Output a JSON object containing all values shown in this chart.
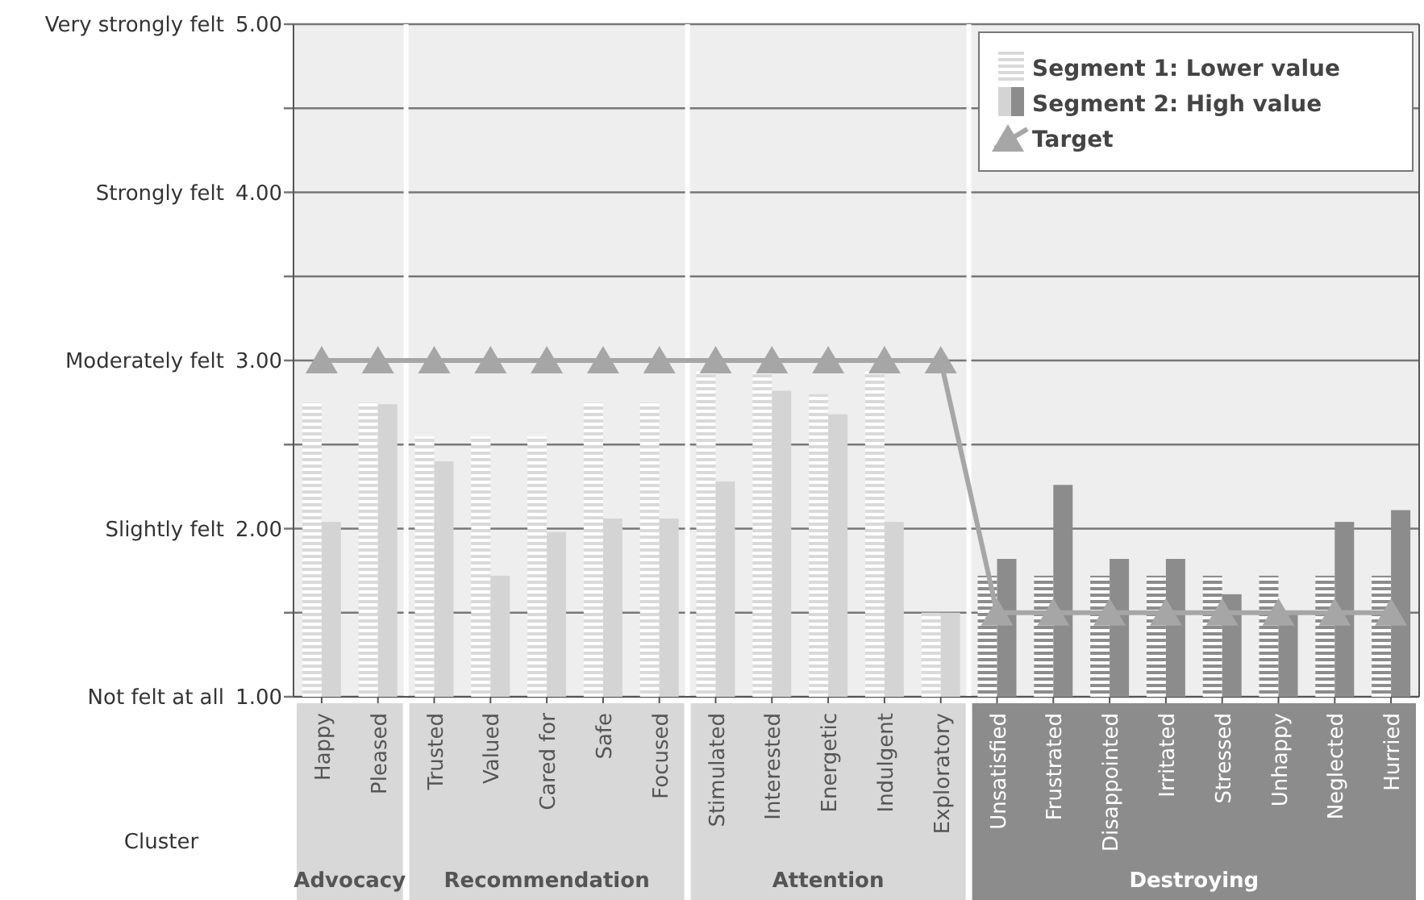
{
  "chart_data": {
    "type": "bar",
    "xlabel": "Cluster",
    "categories": [
      "Happy",
      "Pleased",
      "Trusted",
      "Valued",
      "Cared for",
      "Safe",
      "Focused",
      "Stimulated",
      "Interested",
      "Energetic",
      "Indulgent",
      "Exploratory",
      "Unsatisfied",
      "Frustrated",
      "Disappointed",
      "Irritated",
      "Stressed",
      "Unhappy",
      "Neglected",
      "Hurried"
    ],
    "series": [
      {
        "name": "Segment 1: Lower value",
        "color": "#d9d9d9",
        "colors": [
          "#d9d9d9",
          "#d9d9d9",
          "#d9d9d9",
          "#d9d9d9",
          "#d9d9d9",
          "#d9d9d9",
          "#d9d9d9",
          "#d9d9d9",
          "#d9d9d9",
          "#d9d9d9",
          "#d9d9d9",
          "#d9d9d9",
          "#8c8c8c",
          "#8c8c8c",
          "#8c8c8c",
          "#8c8c8c",
          "#8c8c8c",
          "#8c8c8c",
          "#8c8c8c",
          "#8c8c8c"
        ],
        "values": [
          2.75,
          2.75,
          2.55,
          2.55,
          2.55,
          2.75,
          2.75,
          2.94,
          2.93,
          2.8,
          2.94,
          1.5,
          1.72,
          1.72,
          1.72,
          1.72,
          1.72,
          1.72,
          1.72,
          1.72
        ]
      },
      {
        "name": "Segment 2: High value",
        "color": "#d4d4d4",
        "colors": [
          "#d4d4d4",
          "#d4d4d4",
          "#d4d4d4",
          "#d4d4d4",
          "#d4d4d4",
          "#d4d4d4",
          "#d4d4d4",
          "#d4d4d4",
          "#d4d4d4",
          "#d4d4d4",
          "#d4d4d4",
          "#d4d4d4",
          "#8c8c8c",
          "#8c8c8c",
          "#8c8c8c",
          "#8c8c8c",
          "#8c8c8c",
          "#8c8c8c",
          "#8c8c8c",
          "#8c8c8c"
        ],
        "values": [
          2.04,
          2.74,
          2.4,
          1.72,
          1.98,
          2.06,
          2.06,
          2.28,
          2.82,
          2.68,
          2.04,
          1.5,
          1.82,
          2.26,
          1.82,
          1.82,
          1.61,
          1.5,
          2.04,
          2.11
        ]
      },
      {
        "name": "Target",
        "type": "line",
        "color": "#a6a6a6",
        "marker": "triangle",
        "values": [
          3,
          3,
          3,
          3,
          3,
          3,
          3,
          3,
          3,
          3,
          3,
          3,
          1.5,
          1.5,
          1.5,
          1.5,
          1.5,
          1.5,
          1.5,
          1.5
        ]
      }
    ],
    "ylim": [
      1,
      5
    ],
    "yticks": [
      {
        "value": 1,
        "label": "1.00"
      },
      {
        "value": 1.5,
        "label": null
      },
      {
        "value": 2,
        "label": "2.00"
      },
      {
        "value": 2.5,
        "label": null
      },
      {
        "value": 3,
        "label": "3.00"
      },
      {
        "value": 3.5,
        "label": null
      },
      {
        "value": 4,
        "label": "4.00"
      },
      {
        "value": 4.5,
        "label": null
      },
      {
        "value": 5,
        "label": "5.00"
      }
    ],
    "grid": "y",
    "legend": "top right",
    "annotations": [
      "Advocacy",
      "Recommendation",
      "Attention",
      "Destroying",
      "Not felt at all",
      "Slightly felt",
      "Moderately felt",
      "Strongly felt",
      "Very strongly felt"
    ]
  }
}
